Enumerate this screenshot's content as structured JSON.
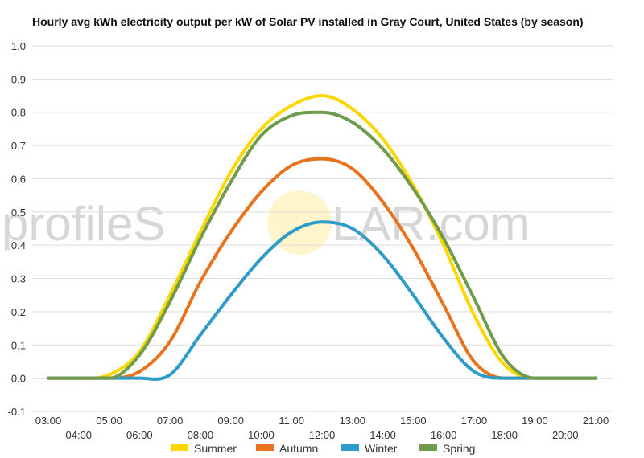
{
  "chart_data": {
    "type": "line",
    "title": "Hourly avg kWh electricity output per kW of Solar PV installed in Gray Court, United States (by season)",
    "xlabel": "",
    "ylabel": "",
    "ylim": [
      -0.1,
      1.0
    ],
    "y_ticks": [
      "-0.1",
      "0.0",
      "0.1",
      "0.2",
      "0.3",
      "0.4",
      "0.5",
      "0.6",
      "0.7",
      "0.8",
      "0.9",
      "1.0"
    ],
    "categories": [
      "03:00",
      "04:00",
      "05:00",
      "06:00",
      "07:00",
      "08:00",
      "09:00",
      "10:00",
      "11:00",
      "12:00",
      "13:00",
      "14:00",
      "15:00",
      "16:00",
      "17:00",
      "18:00",
      "19:00",
      "20:00",
      "21:00"
    ],
    "grid": true,
    "legend_position": "bottom",
    "series": [
      {
        "name": "Summer",
        "color": "#FFD700",
        "values": [
          0,
          0,
          0.01,
          0.08,
          0.25,
          0.44,
          0.62,
          0.75,
          0.82,
          0.85,
          0.81,
          0.72,
          0.58,
          0.4,
          0.19,
          0.04,
          0,
          0,
          0
        ]
      },
      {
        "name": "Autumn",
        "color": "#E8731E",
        "values": [
          0,
          0,
          0,
          0.02,
          0.11,
          0.29,
          0.44,
          0.56,
          0.64,
          0.66,
          0.63,
          0.53,
          0.39,
          0.22,
          0.05,
          0,
          0,
          0,
          0
        ]
      },
      {
        "name": "Winter",
        "color": "#2E9BC8",
        "values": [
          0,
          0,
          0,
          0,
          0.01,
          0.13,
          0.25,
          0.36,
          0.44,
          0.47,
          0.45,
          0.37,
          0.25,
          0.12,
          0.02,
          0,
          0,
          0,
          0
        ]
      },
      {
        "name": "Spring",
        "color": "#6E9B4C",
        "values": [
          0,
          0,
          0,
          0.07,
          0.23,
          0.42,
          0.59,
          0.73,
          0.79,
          0.8,
          0.77,
          0.69,
          0.57,
          0.42,
          0.24,
          0.06,
          0,
          0,
          0
        ]
      }
    ],
    "watermark": {
      "left": "profileS",
      "right": "LAR.com"
    }
  }
}
